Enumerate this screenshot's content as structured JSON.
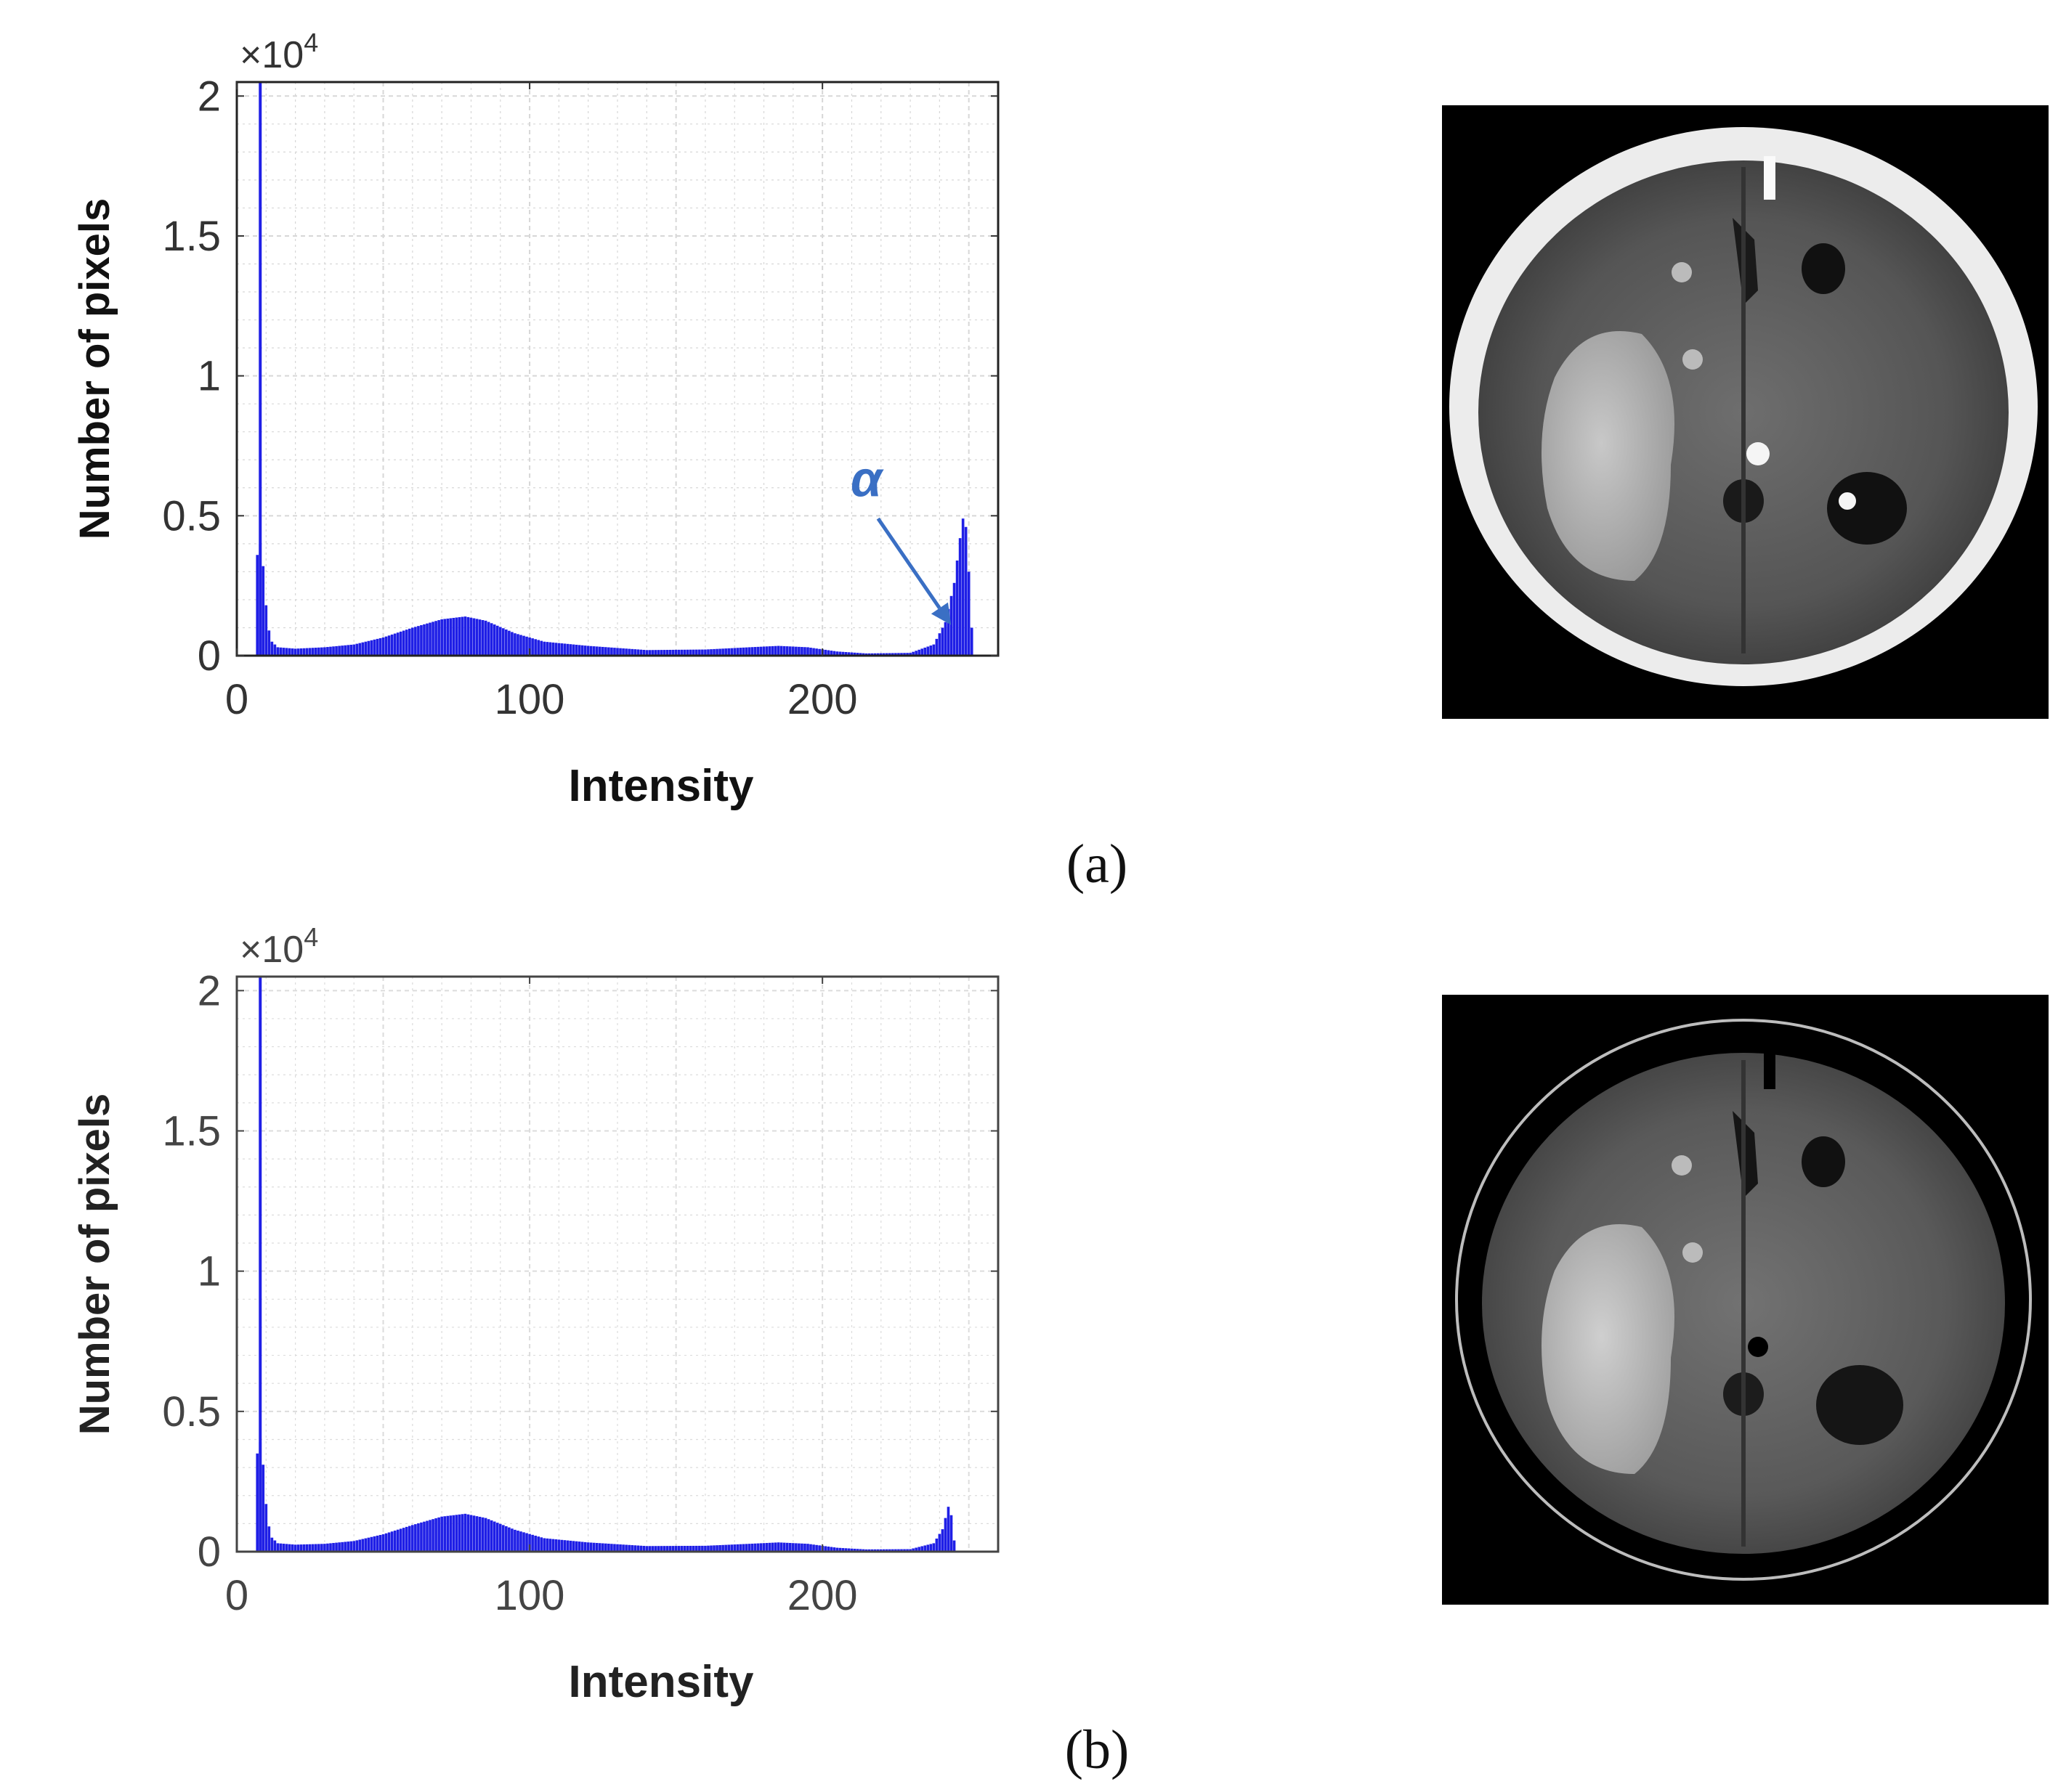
{
  "panels": [
    {
      "label": "(a)",
      "annotation": "α",
      "chart_data": {
        "type": "bar",
        "title": "",
        "xlabel": "Intensity",
        "ylabel": "Number of pixels",
        "y_multiplier": "×10",
        "y_multiplier_exp": "4",
        "xlim": [
          0,
          260
        ],
        "ylim": [
          0,
          20500
        ],
        "xticks": [
          "0",
          "100",
          "200"
        ],
        "xtick_values": [
          0,
          100,
          200
        ],
        "yticks": [
          "0",
          "0.5",
          "1",
          "1.5",
          "2"
        ],
        "ytick_values": [
          0,
          5000,
          10000,
          15000,
          20000
        ],
        "grid": true,
        "bar_color": "#1f1fe6",
        "profile": [
          [
            0,
            0
          ],
          [
            6,
            0
          ],
          [
            7,
            3600
          ],
          [
            8,
            4000
          ],
          [
            9,
            3200
          ],
          [
            10,
            1800
          ],
          [
            11,
            900
          ],
          [
            12,
            500
          ],
          [
            14,
            300
          ],
          [
            20,
            250
          ],
          [
            30,
            300
          ],
          [
            40,
            400
          ],
          [
            50,
            650
          ],
          [
            60,
            1000
          ],
          [
            70,
            1300
          ],
          [
            78,
            1400
          ],
          [
            85,
            1250
          ],
          [
            95,
            800
          ],
          [
            105,
            500
          ],
          [
            120,
            350
          ],
          [
            140,
            200
          ],
          [
            160,
            220
          ],
          [
            175,
            300
          ],
          [
            185,
            350
          ],
          [
            195,
            300
          ],
          [
            205,
            150
          ],
          [
            215,
            80
          ],
          [
            230,
            100
          ],
          [
            238,
            400
          ],
          [
            242,
            1200
          ],
          [
            245,
            2600
          ],
          [
            247,
            4200
          ],
          [
            248,
            4900
          ],
          [
            249,
            4600
          ],
          [
            250,
            3000
          ],
          [
            251,
            1000
          ],
          [
            252,
            0
          ]
        ],
        "spikes": [
          {
            "x": 8,
            "y": 20500
          }
        ]
      }
    },
    {
      "label": "(b)",
      "chart_data": {
        "type": "bar",
        "title": "",
        "xlabel": "Intensity",
        "ylabel": "Number of pixels",
        "y_multiplier": "×10",
        "y_multiplier_exp": "4",
        "xlim": [
          0,
          260
        ],
        "ylim": [
          0,
          20500
        ],
        "xticks": [
          "0",
          "100",
          "200"
        ],
        "xtick_values": [
          0,
          100,
          200
        ],
        "yticks": [
          "0",
          "0.5",
          "1",
          "1.5",
          "2"
        ],
        "ytick_values": [
          0,
          5000,
          10000,
          15000,
          20000
        ],
        "grid": true,
        "bar_color": "#1f1fe6",
        "profile": [
          [
            0,
            0
          ],
          [
            6,
            0
          ],
          [
            7,
            3500
          ],
          [
            8,
            3900
          ],
          [
            9,
            3100
          ],
          [
            10,
            1700
          ],
          [
            11,
            900
          ],
          [
            12,
            500
          ],
          [
            14,
            300
          ],
          [
            20,
            250
          ],
          [
            30,
            280
          ],
          [
            40,
            380
          ],
          [
            50,
            620
          ],
          [
            60,
            950
          ],
          [
            70,
            1250
          ],
          [
            78,
            1350
          ],
          [
            85,
            1200
          ],
          [
            95,
            780
          ],
          [
            105,
            480
          ],
          [
            120,
            330
          ],
          [
            140,
            200
          ],
          [
            160,
            210
          ],
          [
            175,
            280
          ],
          [
            185,
            330
          ],
          [
            195,
            280
          ],
          [
            205,
            140
          ],
          [
            215,
            80
          ],
          [
            230,
            90
          ],
          [
            238,
            300
          ],
          [
            241,
            800
          ],
          [
            243,
            1600
          ],
          [
            244,
            1300
          ],
          [
            245,
            400
          ],
          [
            246,
            0
          ]
        ],
        "spikes": [
          {
            "x": 8,
            "y": 20500
          }
        ]
      }
    }
  ]
}
